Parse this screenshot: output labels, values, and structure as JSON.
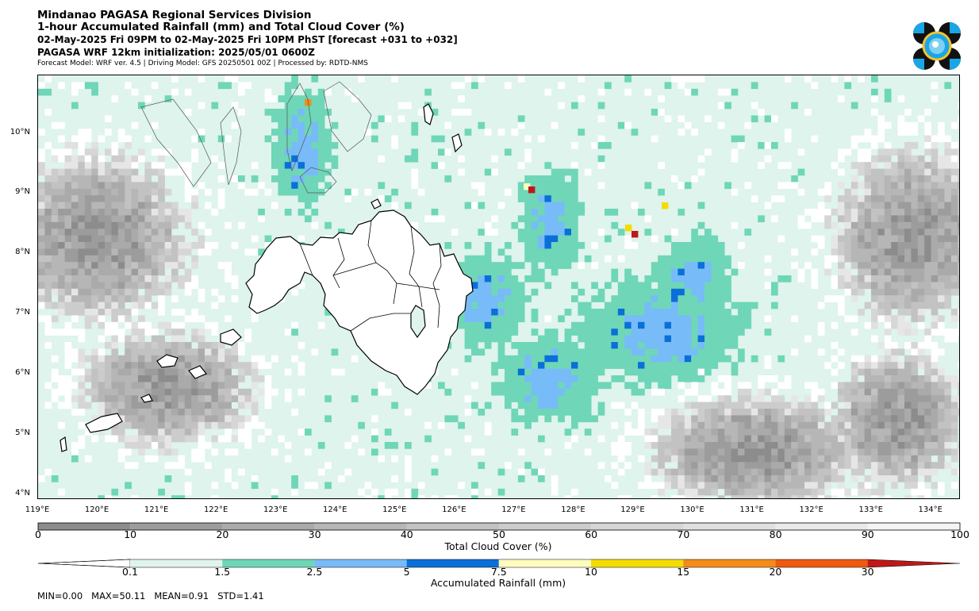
{
  "header": {
    "title_line1": "Mindanao PAGASA Regional Services Division",
    "title_line2": "1-hour Accumulated Rainfall (mm) and Total Cloud Cover (%)",
    "title_line3": "02-May-2025 Fri 09PM to 02-May-2025 Fri 10PM PhST [forecast +031 to +032]",
    "title_line4": "PAGASA WRF 12km initialization: 2025/05/01 0600Z",
    "credits": "Forecast Model: WRF ver. 4.5 | Driving Model: GFS 20250501 00Z | Processed by: RDTD-NMS"
  },
  "map": {
    "lat_labels": [
      "10°N",
      "9°N",
      "8°N",
      "7°N",
      "6°N",
      "5°N",
      "4°N"
    ],
    "lon_labels": [
      "119°E",
      "120°E",
      "121°E",
      "122°E",
      "123°E",
      "124°E",
      "125°E",
      "126°E",
      "127°E",
      "128°E",
      "129°E",
      "130°E",
      "131°E",
      "132°E",
      "133°E",
      "134°E"
    ],
    "lon_range": [
      119,
      134.5
    ],
    "lat_range": [
      3.9,
      11.0
    ]
  },
  "cloud_colorbar": {
    "label": "Total Cloud Cover (%)",
    "ticks": [
      "0",
      "10",
      "20",
      "30",
      "40",
      "50",
      "60",
      "70",
      "80",
      "90",
      "100"
    ],
    "colors": [
      "#8c8c8c",
      "#9c9c9c",
      "#aaaaaa",
      "#b6b6b6",
      "#c2c2c2",
      "#cccccc",
      "#d6d6d6",
      "#e0e0e0",
      "#eaeaea",
      "#f4f4f4"
    ]
  },
  "rain_colorbar": {
    "label": "Accumulated Rainfall (mm)",
    "ticks": [
      "0.1",
      "1.5",
      "2.5",
      "5",
      "7.5",
      "10",
      "15",
      "20",
      "30"
    ],
    "colors": [
      "#ffffff",
      "#def4ec",
      "#6fd6b8",
      "#77bbf8",
      "#0a6fd9",
      "#fffcc0",
      "#f5dc00",
      "#f28c1a",
      "#ee5a0f",
      "#c01818"
    ]
  },
  "stats": {
    "min": "MIN=0.00",
    "max": "MAX=50.11",
    "mean": "MEAN=0.91",
    "std": "STD=1.41"
  }
}
